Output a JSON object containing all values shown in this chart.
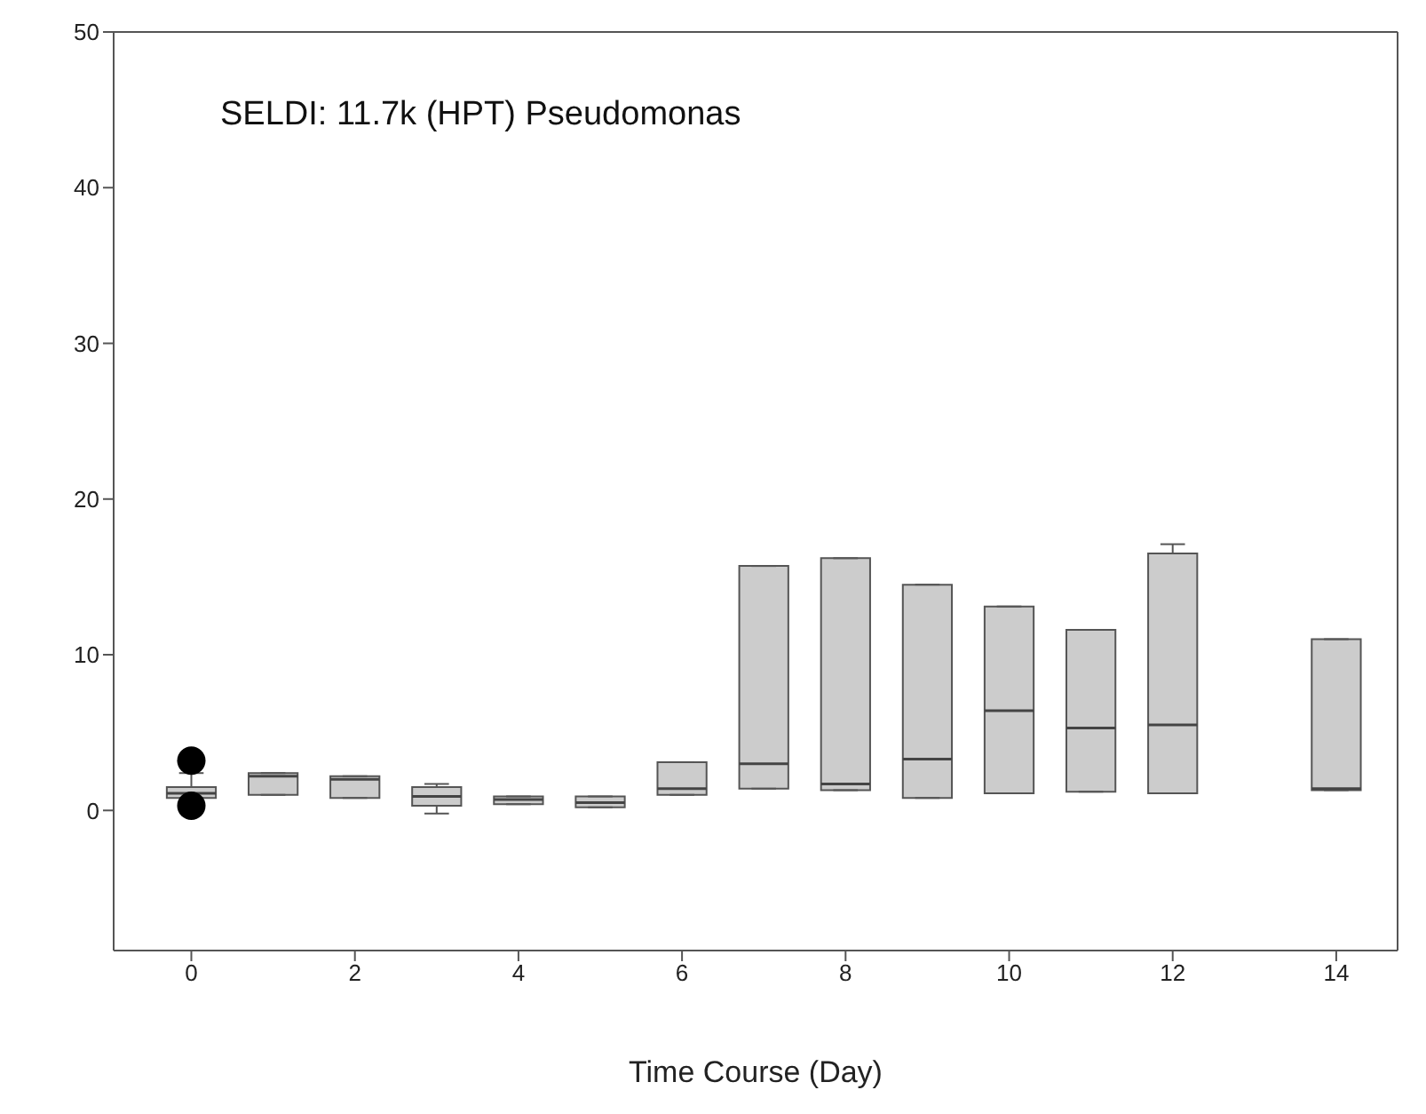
{
  "chart_data": {
    "type": "box",
    "title": "SELDI: 11.7k (HPT) Pseudomonas",
    "xlabel": "Time Course (Day)",
    "x": [
      0,
      1,
      2,
      3,
      4,
      5,
      6,
      7,
      8,
      9,
      10,
      11,
      12,
      14
    ],
    "boxes": [
      {
        "low": 0.8,
        "q1": 0.8,
        "median": 1.1,
        "q3": 1.5,
        "high": 2.4,
        "outliers": [
          3.2,
          0.3
        ]
      },
      {
        "low": 1.0,
        "q1": 1.0,
        "median": 2.2,
        "q3": 2.4,
        "high": 2.4
      },
      {
        "low": 0.8,
        "q1": 0.8,
        "median": 2.0,
        "q3": 2.2,
        "high": 2.2
      },
      {
        "low": -0.2,
        "q1": 0.3,
        "median": 0.9,
        "q3": 1.5,
        "high": 1.7
      },
      {
        "low": 0.4,
        "q1": 0.4,
        "median": 0.7,
        "q3": 0.9,
        "high": 0.9
      },
      {
        "low": 0.2,
        "q1": 0.2,
        "median": 0.5,
        "q3": 0.9,
        "high": 0.9
      },
      {
        "low": 1.0,
        "q1": 1.0,
        "median": 1.4,
        "q3": 3.1,
        "high": 3.1
      },
      {
        "low": 1.4,
        "q1": 1.4,
        "median": 3.0,
        "q3": 15.7,
        "high": 15.7
      },
      {
        "low": 1.3,
        "q1": 1.3,
        "median": 1.7,
        "q3": 16.2,
        "high": 16.2
      },
      {
        "low": 0.8,
        "q1": 0.8,
        "median": 3.3,
        "q3": 14.5,
        "high": 14.5
      },
      {
        "low": 1.1,
        "q1": 1.1,
        "median": 6.4,
        "q3": 13.1,
        "high": 13.1
      },
      {
        "low": 1.2,
        "q1": 1.2,
        "median": 5.3,
        "q3": 11.6,
        "high": 11.6
      },
      {
        "low": 1.1,
        "q1": 1.1,
        "median": 5.5,
        "q3": 16.5,
        "high": 17.1
      },
      {
        "low": 1.3,
        "q1": 1.3,
        "median": 1.4,
        "q3": 11.0,
        "high": 11.0
      }
    ],
    "color": "#cccccc",
    "xlim": [
      -0.95,
      14.75
    ],
    "xticks": [
      0,
      2,
      4,
      6,
      8,
      10,
      12,
      14
    ],
    "ylim": [
      -9,
      50
    ],
    "yticks": [
      0,
      10,
      20,
      30,
      40,
      50
    ],
    "grid": false
  }
}
